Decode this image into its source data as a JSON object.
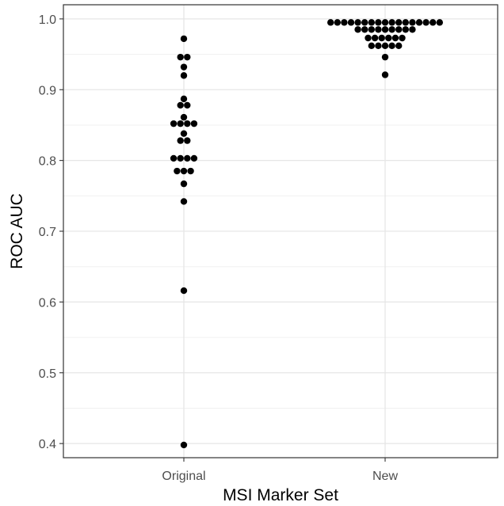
{
  "chart_data": {
    "type": "scatter",
    "title": "",
    "xlabel": "MSI Marker Set",
    "ylabel": "ROC AUC",
    "categories": [
      "Original",
      "New"
    ],
    "ylim": [
      0.38,
      1.02
    ],
    "yticks": [
      0.4,
      0.5,
      0.6,
      0.7,
      0.8,
      0.9,
      1.0
    ],
    "ytick_labels": [
      "0.4",
      "0.5",
      "0.6",
      "0.7",
      "0.8",
      "0.9",
      "1.0"
    ],
    "grid": true,
    "legend": "none",
    "point_color": "#000000",
    "series": [
      {
        "category": "Original",
        "values": [
          0.972,
          0.946,
          0.946,
          0.932,
          0.92,
          0.887,
          0.878,
          0.878,
          0.861,
          0.852,
          0.852,
          0.852,
          0.852,
          0.838,
          0.828,
          0.828,
          0.803,
          0.803,
          0.803,
          0.803,
          0.785,
          0.785,
          0.785,
          0.767,
          0.742,
          0.616,
          0.398
        ]
      },
      {
        "category": "New",
        "values": [
          0.995,
          0.995,
          0.995,
          0.995,
          0.995,
          0.995,
          0.995,
          0.995,
          0.995,
          0.995,
          0.995,
          0.995,
          0.995,
          0.995,
          0.995,
          0.995,
          0.995,
          0.985,
          0.985,
          0.985,
          0.985,
          0.985,
          0.985,
          0.985,
          0.985,
          0.985,
          0.973,
          0.973,
          0.973,
          0.973,
          0.973,
          0.973,
          0.962,
          0.962,
          0.962,
          0.962,
          0.962,
          0.946,
          0.921
        ]
      }
    ]
  }
}
